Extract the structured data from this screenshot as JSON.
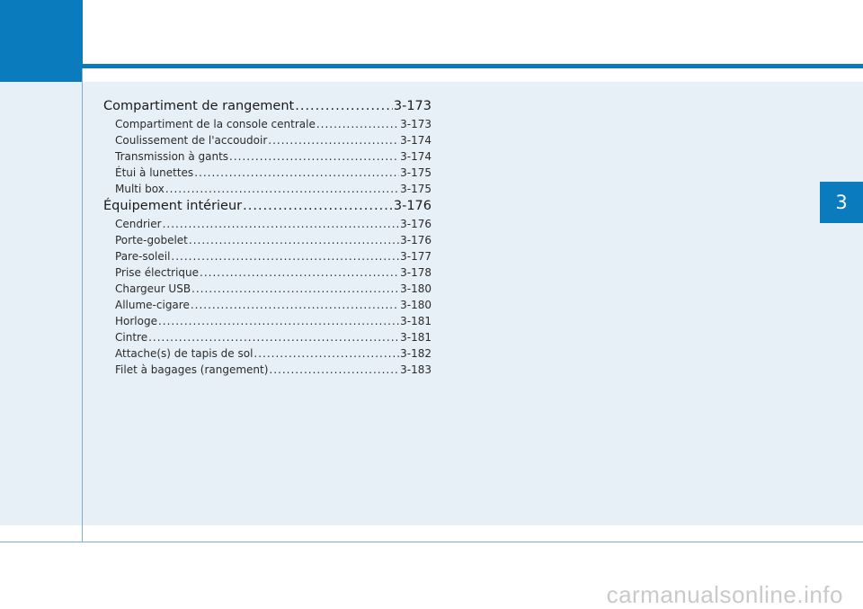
{
  "chapter_tab": "3",
  "toc": [
    {
      "type": "section",
      "label": "Compartiment de rangement",
      "page": "3-173"
    },
    {
      "type": "sub",
      "label": "Compartiment de la console centrale",
      "page": "3-173"
    },
    {
      "type": "sub",
      "label": "Coulissement de l'accoudoir",
      "page": "3-174"
    },
    {
      "type": "sub",
      "label": "Transmission à gants",
      "page": "3-174"
    },
    {
      "type": "sub",
      "label": "Étui à lunettes",
      "page": "3-175"
    },
    {
      "type": "sub",
      "label": "Multi box",
      "page": "3-175"
    },
    {
      "type": "section",
      "label": "Équipement intérieur",
      "page": "3-176"
    },
    {
      "type": "sub",
      "label": "Cendrier",
      "page": "3-176"
    },
    {
      "type": "sub",
      "label": "Porte-gobelet",
      "page": "3-176"
    },
    {
      "type": "sub",
      "label": "Pare-soleil",
      "page": "3-177"
    },
    {
      "type": "sub",
      "label": "Prise électrique",
      "page": "3-178"
    },
    {
      "type": "sub",
      "label": "Chargeur USB",
      "page": "3-180"
    },
    {
      "type": "sub",
      "label": "Allume-cigare",
      "page": "3-180"
    },
    {
      "type": "sub",
      "label": "Horloge",
      "page": "3-181"
    },
    {
      "type": "sub",
      "label": "Cintre",
      "page": "3-181"
    },
    {
      "type": "sub",
      "label": "Attache(s) de tapis de sol",
      "page": "3-182"
    },
    {
      "type": "sub",
      "label": "Filet à bagages (rangement)",
      "page": "3-183"
    }
  ],
  "watermark": "carmanualsonline.info",
  "colors": {
    "accent": "#0a7bbd",
    "page_bg": "#e8f0f7"
  }
}
